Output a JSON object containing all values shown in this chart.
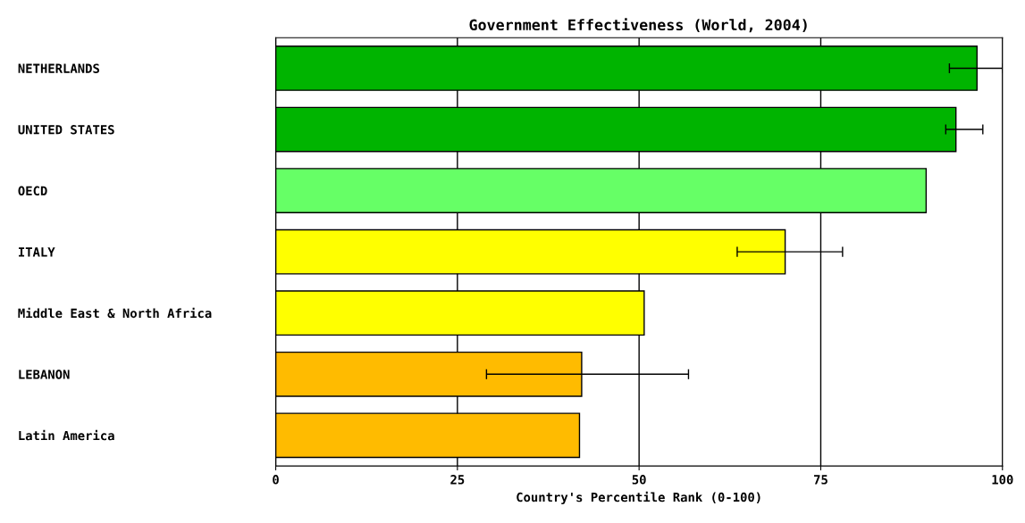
{
  "chart_data": {
    "type": "bar",
    "orientation": "horizontal",
    "title": "Government Effectiveness (World, 2004)",
    "xlabel": "Country's Percentile Rank (0-100)",
    "categories": [
      "NETHERLANDS",
      "UNITED STATES",
      "OECD",
      "ITALY",
      "Middle East & North Africa",
      "LEBANON",
      "Latin America"
    ],
    "values": [
      96.5,
      93.6,
      89.5,
      70.1,
      50.7,
      42.1,
      41.8
    ],
    "colors": [
      "#00b400",
      "#00b400",
      "#66ff66",
      "#ffff00",
      "#ffff00",
      "#ffbb00",
      "#ffbb00"
    ],
    "errors": [
      [
        92.7,
        100
      ],
      [
        92.2,
        97.3
      ],
      null,
      [
        63.5,
        78
      ],
      null,
      [
        29,
        56.8
      ],
      null
    ],
    "xlim": [
      0,
      100
    ],
    "xticks": [
      0,
      25,
      50,
      75,
      100
    ],
    "grid": "x"
  }
}
